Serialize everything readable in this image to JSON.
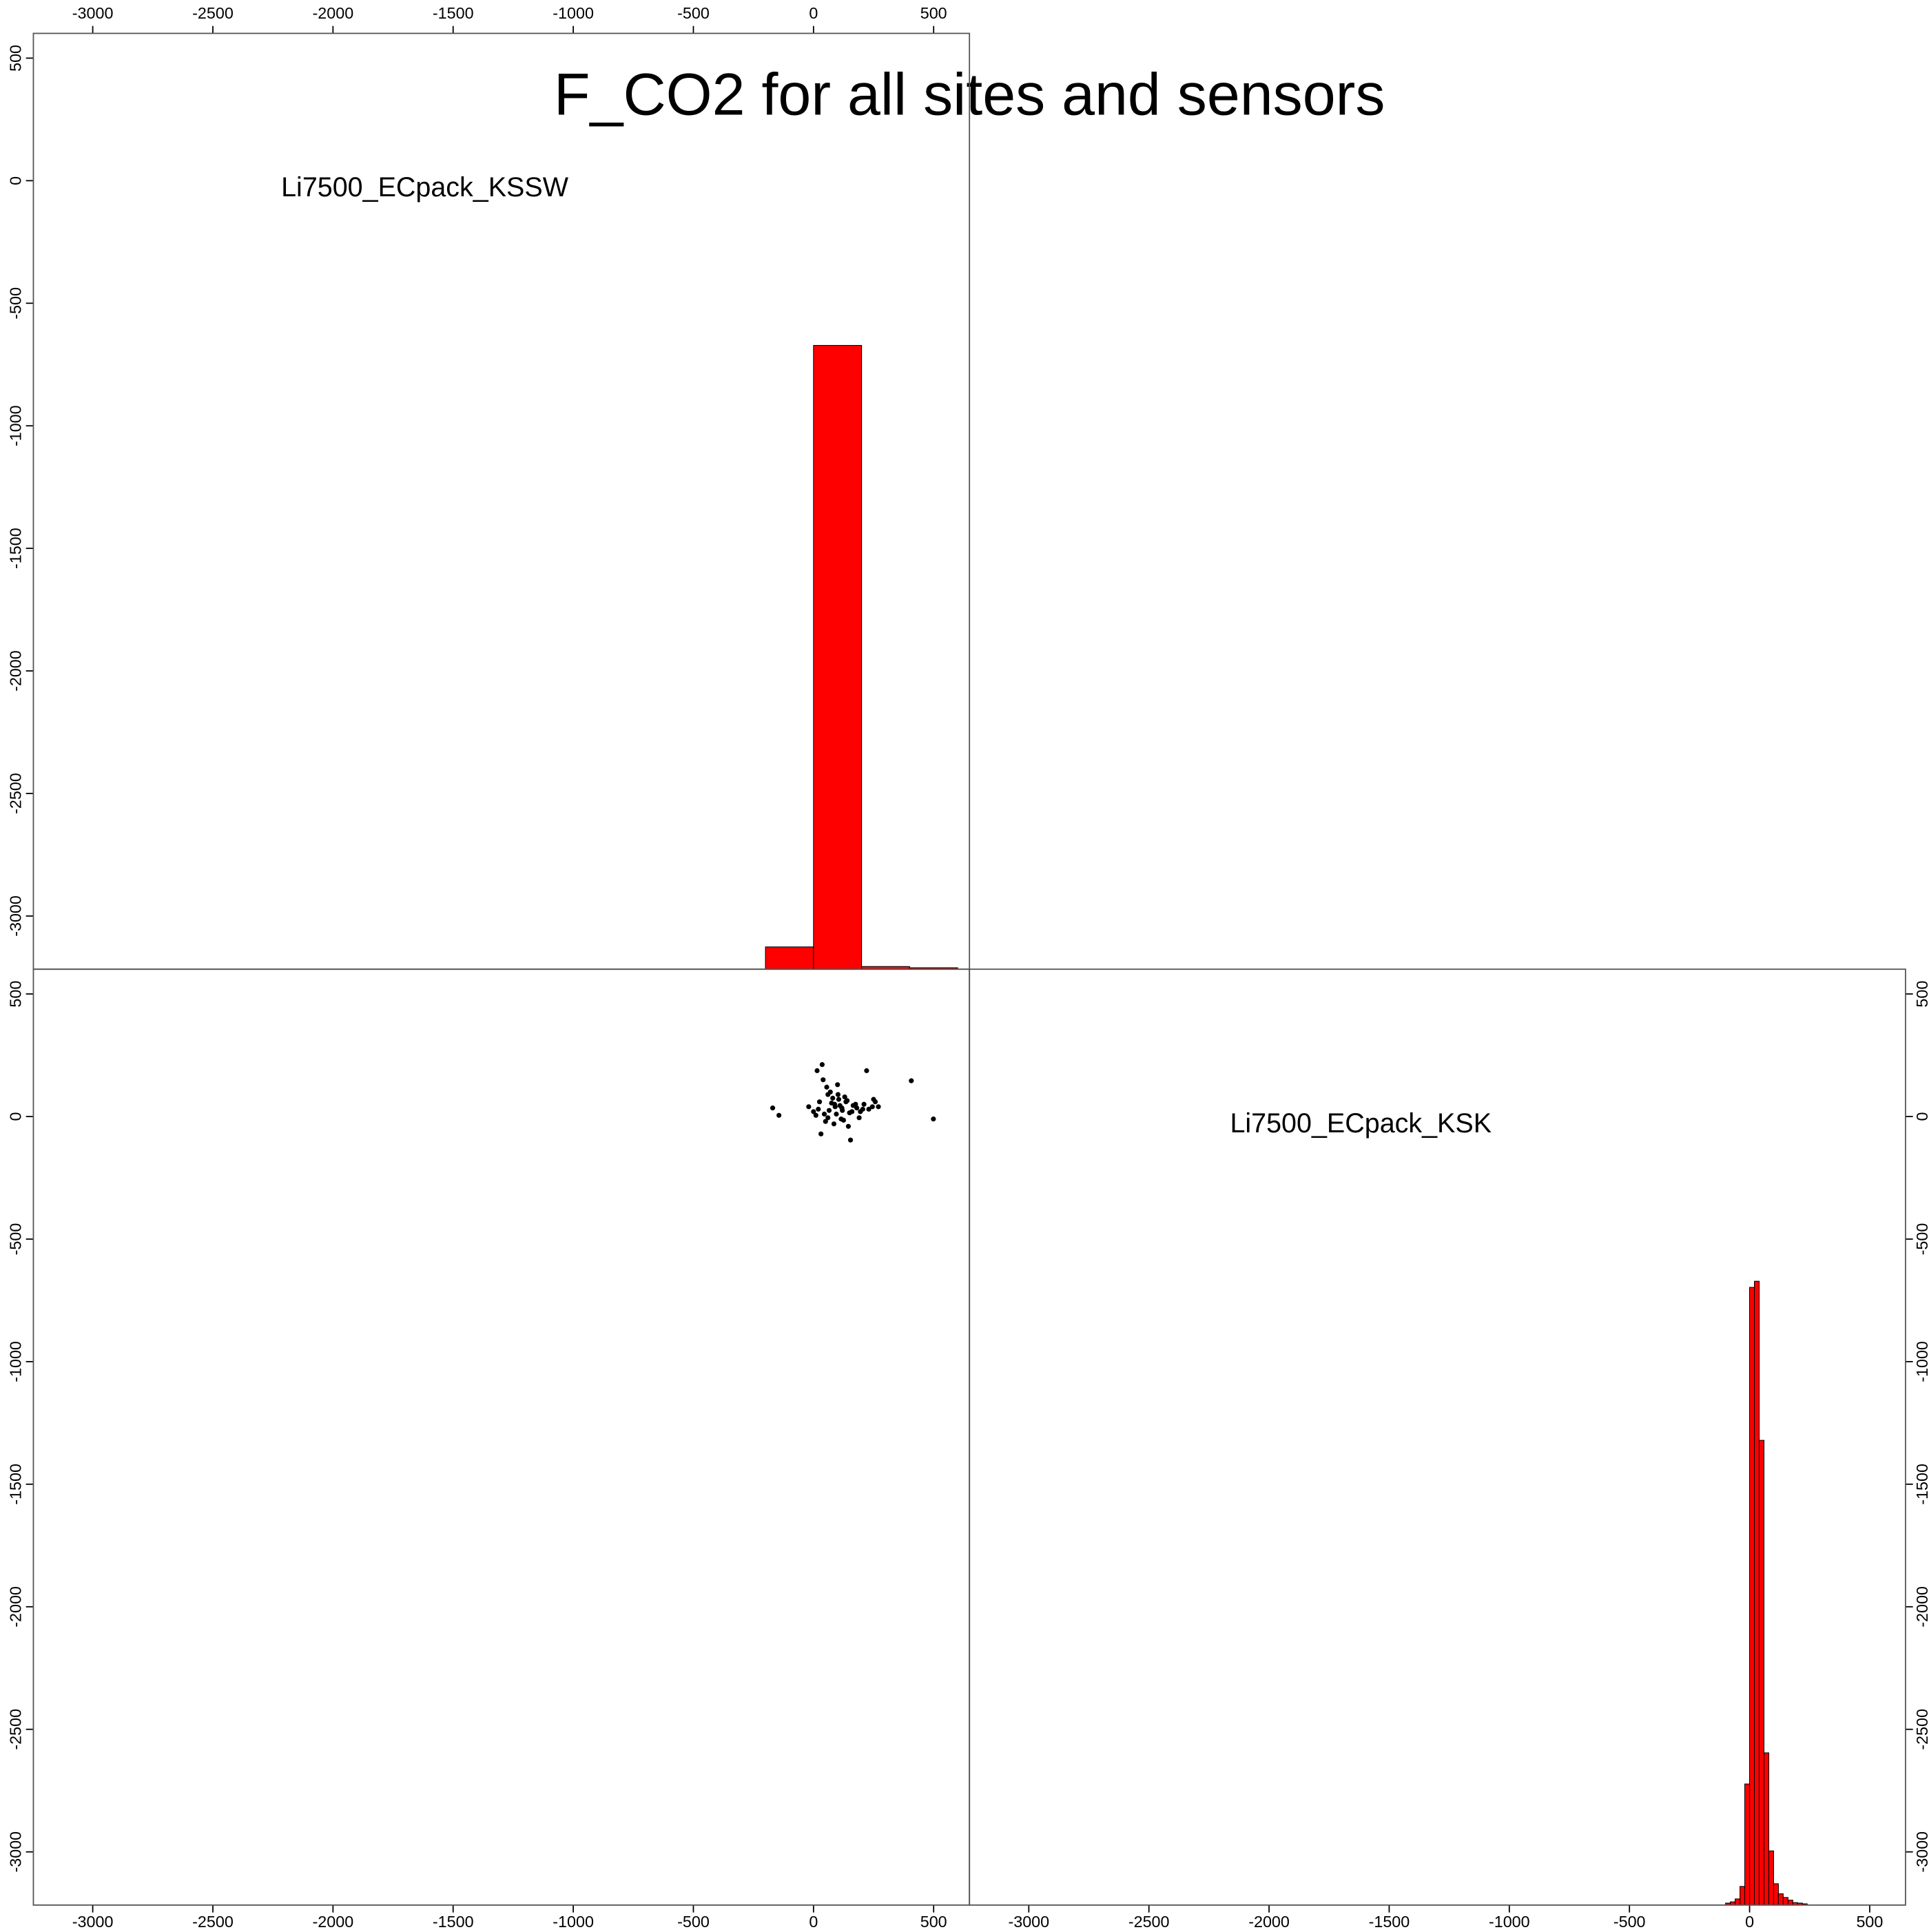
{
  "title": "F_CO2 for all sites and sensors",
  "chart_data": [
    {
      "type": "histogram",
      "label": "Li7500_ECpack_KSSW",
      "color": "#ff0000",
      "bins": [
        -200,
        0,
        200,
        400,
        600
      ],
      "values": [
        -3126,
        -672,
        -3206,
        -3211
      ],
      "xlim": [
        -3247,
        649
      ],
      "ylim": [
        -3217,
        601
      ],
      "xticks": [
        -3000,
        -2500,
        -2000,
        -1500,
        -1000,
        -500,
        0,
        500
      ],
      "yticks": [
        -3000,
        -2500,
        -2000,
        -1500,
        -1000,
        -500,
        0,
        500
      ]
    },
    {
      "type": "scatter",
      "color": "#000000",
      "x": [
        407,
        499,
        -170,
        -144,
        36,
        15,
        221,
        154,
        31,
        257,
        20,
        45,
        60,
        75,
        90,
        105,
        120,
        135,
        150,
        165,
        180,
        195,
        210,
        230,
        245,
        10,
        25,
        50,
        70,
        85,
        100,
        115,
        130,
        145,
        160,
        175,
        190,
        205,
        55,
        80,
        95,
        110,
        125,
        140,
        65,
        88,
        102,
        118,
        60,
        40,
        -20,
        0,
        250,
        270
      ],
      "y": [
        146,
        -10,
        35,
        5,
        212,
        187,
        187,
        -96,
        -71,
        60,
        30,
        10,
        90,
        55,
        40,
        70,
        25,
        60,
        15,
        45,
        35,
        20,
        50,
        30,
        40,
        5,
        60,
        -20,
        100,
        -30,
        130,
        -10,
        80,
        -40,
        20,
        50,
        -5,
        30,
        120,
        75,
        10,
        45,
        -15,
        65,
        25,
        50,
        90,
        35,
        -5,
        150,
        40,
        20,
        70,
        40
      ],
      "xlim": [
        -3247,
        649
      ],
      "ylim": [
        -3217,
        601
      ],
      "xticks": [
        -3000,
        -2500,
        -2000,
        -1500,
        -1000,
        -500,
        0,
        500
      ],
      "yticks": [
        -3000,
        -2500,
        -2000,
        -1500,
        -1000,
        -500,
        0,
        500
      ]
    },
    {
      "type": "histogram",
      "label": "Li7500_ECpack_KSK",
      "color": "#ff0000",
      "bins": [
        -100,
        -80,
        -60,
        -40,
        -20,
        0,
        20,
        40,
        60,
        80,
        100,
        120,
        140,
        160,
        180,
        200,
        220,
        240
      ],
      "values": [
        -3209,
        -3204,
        -3192,
        -3141,
        -2723,
        -697,
        -672,
        -1321,
        -2596,
        -2996,
        -3130,
        -3171,
        -3186,
        -3197,
        -3207,
        -3209,
        -3212
      ],
      "xlim": [
        -3247,
        649
      ],
      "ylim": [
        -3217,
        601
      ],
      "xticks": [
        -3000,
        -2500,
        -2000,
        -1500,
        -1000,
        -500,
        0,
        500
      ],
      "yticks": [
        -3000,
        -2500,
        -2000,
        -1500,
        -1000,
        -500,
        0,
        500
      ]
    }
  ]
}
